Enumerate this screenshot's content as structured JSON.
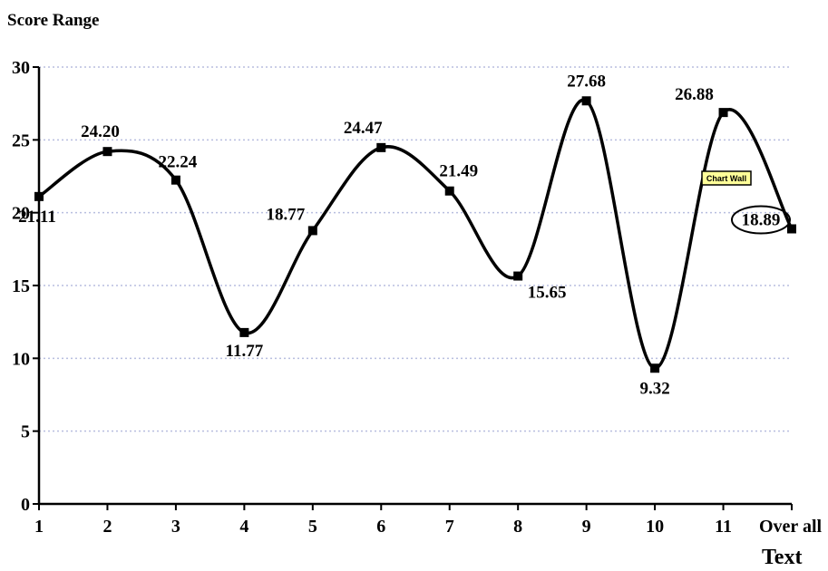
{
  "chart_data": {
    "type": "line",
    "title": "",
    "ylabel": "Score Range",
    "xlabel": "Text",
    "ylim": [
      0,
      30
    ],
    "yticks": [
      0,
      5,
      10,
      15,
      20,
      25,
      30
    ],
    "grid": true,
    "categories": [
      "1",
      "2",
      "3",
      "4",
      "5",
      "6",
      "7",
      "8",
      "9",
      "10",
      "11",
      "Over all"
    ],
    "series": [
      {
        "values": [
          21.11,
          24.2,
          22.24,
          11.77,
          18.77,
          24.47,
          21.49,
          15.65,
          27.68,
          9.32,
          26.88,
          18.89
        ],
        "labels": [
          "21.11",
          "24.20",
          "22.24",
          "11.77",
          "18.77",
          "24.47",
          "21.49",
          "15.65",
          "27.68",
          "9.32",
          "26.88",
          "18.89"
        ]
      }
    ],
    "line_color": "#000000",
    "grid_color": "#b8bedf",
    "highlighted_label_index": 11,
    "tooltip": "Chart Wall",
    "tooltip_color": "#ffff99"
  }
}
